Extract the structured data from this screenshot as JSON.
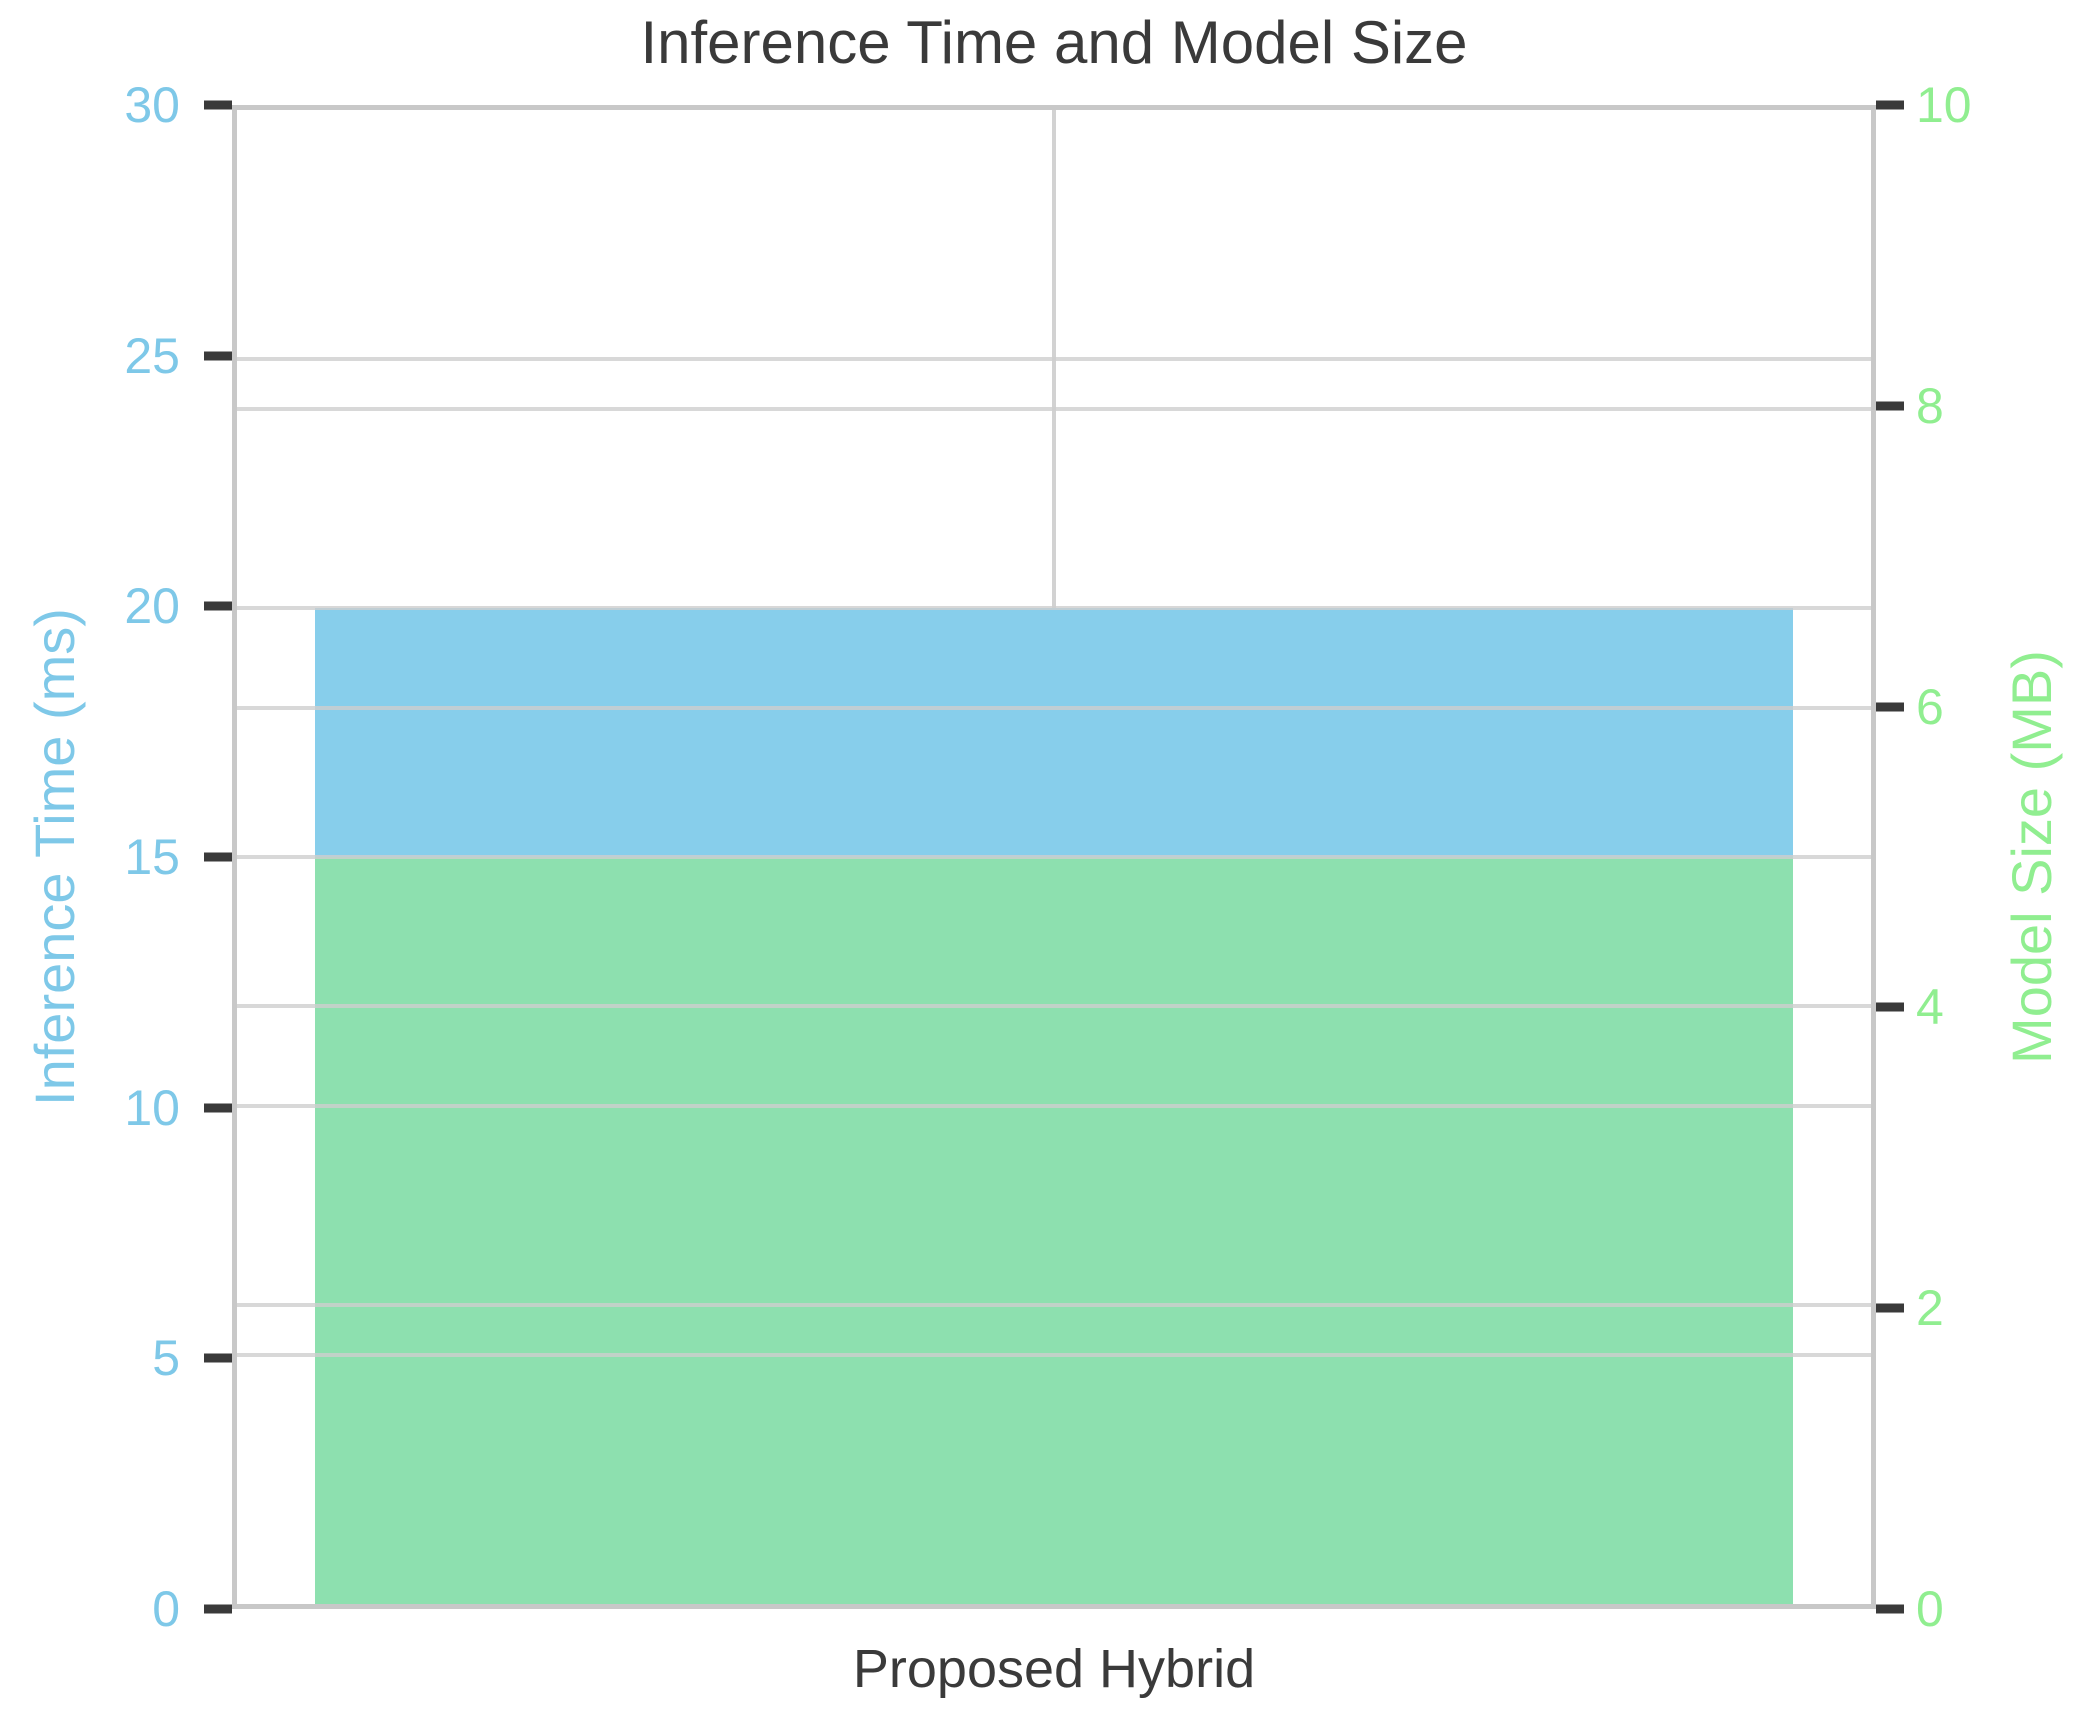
{
  "title": "Inference Time and Model Size",
  "chart_data": {
    "type": "bar",
    "title": "Inference Time and Model Size",
    "categories": [
      "Proposed Hybrid"
    ],
    "series": [
      {
        "name": "Inference Time",
        "unit": "ms",
        "axis": "left",
        "values": [
          20
        ],
        "color": "#87CEEB"
      },
      {
        "name": "Model Size",
        "unit": "MB",
        "axis": "right",
        "values": [
          5
        ],
        "color": "#8DE0AF"
      }
    ],
    "left_axis": {
      "label": "Inference Time (ms)",
      "ticks": [
        0,
        5,
        10,
        15,
        20,
        25,
        30
      ],
      "range": [
        0,
        30
      ],
      "color": "#7EC8E8"
    },
    "right_axis": {
      "label": "Model Size (MB)",
      "ticks": [
        0,
        2,
        4,
        6,
        8,
        10
      ],
      "range": [
        0,
        10
      ],
      "color": "#90EE90"
    },
    "x_axis": {
      "label": "Proposed Hybrid",
      "color": "#3a3a3a"
    },
    "grid": true,
    "legend": "none"
  },
  "style_colors": {
    "spine": "#c8c8c8",
    "gridline": "#d2d2d2",
    "tick_mark": "#3a3a3a",
    "title_text": "#3a3a3a"
  }
}
